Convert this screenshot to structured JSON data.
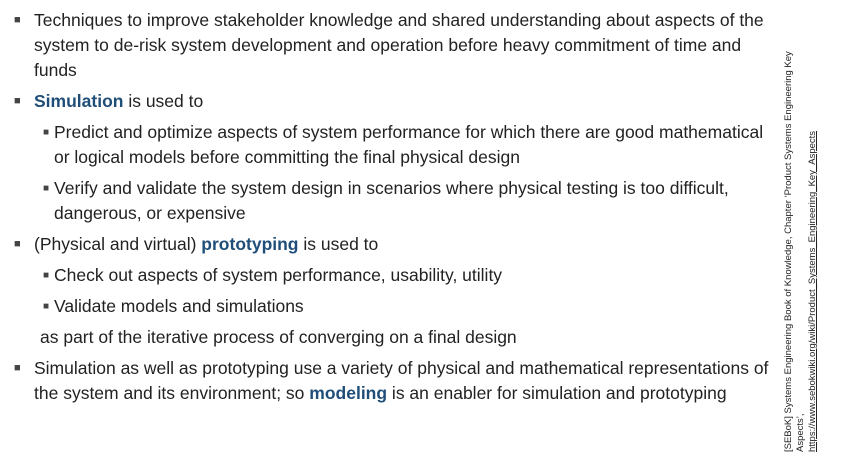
{
  "bullets": {
    "b1_text": "Techniques to improve stakeholder knowledge and shared understanding about aspects of the system to de-risk system development and operation before heavy commitment of time and funds",
    "b2_kw": "Simulation",
    "b2_rest": " is used to",
    "b2_sub1": "Predict and optimize aspects of system performance for which there are good mathematical or logical models before committing the final physical design",
    "b2_sub2": "Verify and validate the system design in scenarios where physical testing is too difficult, dangerous, or expensive",
    "b3_pre": "(Physical and virtual) ",
    "b3_kw": "prototyping",
    "b3_rest": " is used to",
    "b3_sub1": "Check out aspects of system performance, usability, utility",
    "b3_sub2": "Validate models and simulations",
    "b3_tail": "as part of the iterative process of converging on a final design",
    "b4_pre": "Simulation as well as prototyping use a variety of physical and mathematical representations of the system and its environment; so ",
    "b4_kw": "modeling",
    "b4_rest": " is an enabler for simulation and prototyping"
  },
  "side_note": {
    "text": "[SEBoK] Systems Engineering Book of Knowledge, Chapter ‘Product Systems Engineering Key Aspects’,",
    "link": "https://www.sebokwiki.org/wiki/Product_Systems_Engineering_Key_Aspects"
  },
  "icons": {
    "bullet": "square-bullet-icon"
  },
  "colors": {
    "keyword": "#1f4e79",
    "text": "#222222"
  }
}
